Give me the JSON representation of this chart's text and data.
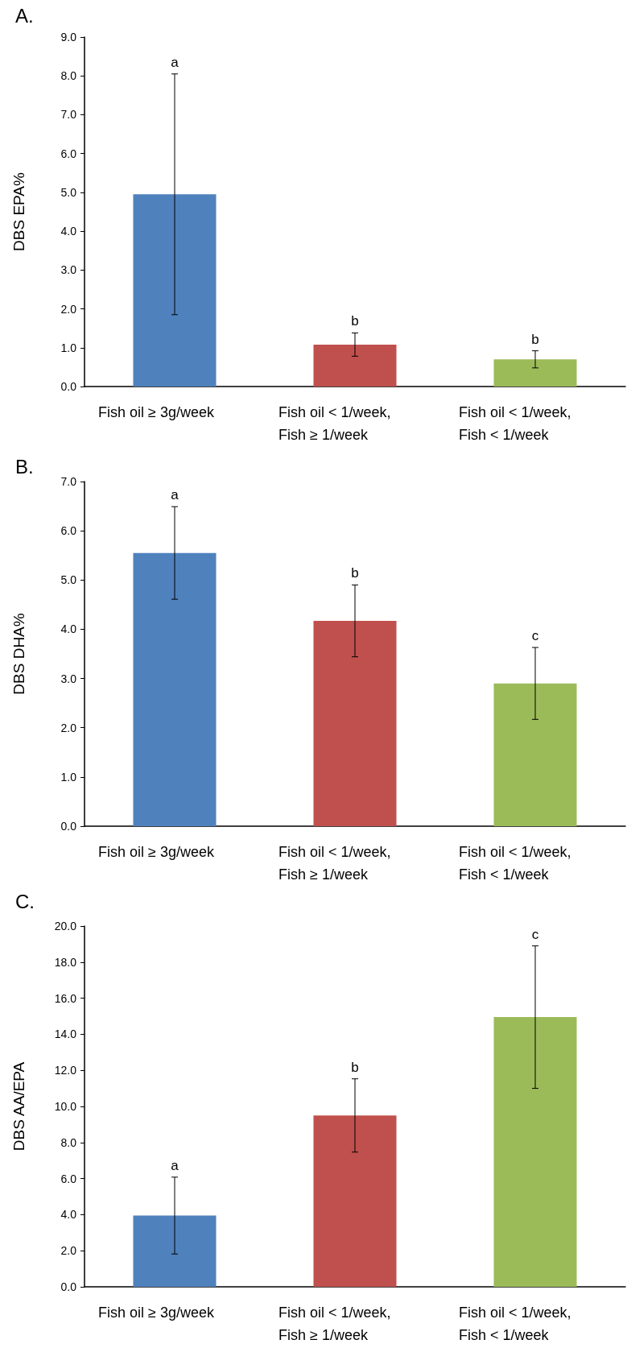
{
  "chart_data": [
    {
      "type": "bar",
      "title": "A.",
      "ylabel": "DBS EPA%",
      "categories": [
        "Fish oil ≥ 3g/week",
        "Fish oil < 1/week,\nFish ≥ 1/week",
        "Fish oil < 1/week,\nFish < 1/week"
      ],
      "values": [
        4.95,
        1.08,
        0.7
      ],
      "colors": [
        "#4f81bd",
        "#c0504d",
        "#9bbb59"
      ],
      "errors": [
        3.1,
        0.3,
        0.22
      ],
      "ylim": [
        0,
        9
      ],
      "yticks": [
        {
          "value": 0,
          "label": "0.0"
        },
        {
          "value": 1,
          "label": "1.0"
        },
        {
          "value": 2,
          "label": "2.0"
        },
        {
          "value": 3,
          "label": "3.0"
        },
        {
          "value": 4,
          "label": "4.0"
        },
        {
          "value": 5,
          "label": "5.0"
        },
        {
          "value": 6,
          "label": "6.0"
        },
        {
          "value": 7,
          "label": "7.0"
        },
        {
          "value": 8,
          "label": "8.0"
        },
        {
          "value": 9,
          "label": "9.0"
        }
      ],
      "grid": false,
      "annotations": [
        "a",
        "b",
        "b"
      ]
    },
    {
      "type": "bar",
      "title": "B.",
      "ylabel": "DBS DHA%",
      "categories": [
        "Fish oil ≥ 3g/week",
        "Fish oil < 1/week,\nFish ≥ 1/week",
        "Fish oil < 1/week,\nFish < 1/week"
      ],
      "values": [
        5.55,
        4.17,
        2.9
      ],
      "colors": [
        "#4f81bd",
        "#c0504d",
        "#9bbb59"
      ],
      "errors": [
        0.94,
        0.73,
        0.73
      ],
      "ylim": [
        0,
        7
      ],
      "yticks": [
        {
          "value": 0,
          "label": "0.0"
        },
        {
          "value": 1,
          "label": "1.0"
        },
        {
          "value": 2,
          "label": "2.0"
        },
        {
          "value": 3,
          "label": "3.0"
        },
        {
          "value": 4,
          "label": "4.0"
        },
        {
          "value": 5,
          "label": "5.0"
        },
        {
          "value": 6,
          "label": "6.0"
        },
        {
          "value": 7,
          "label": "7.0"
        }
      ],
      "grid": false,
      "annotations": [
        "a",
        "b",
        "c"
      ]
    },
    {
      "type": "bar",
      "title": "C.",
      "ylabel": "DBS AA/EPA",
      "categories": [
        "Fish oil ≥ 3g/week",
        "Fish oil < 1/week,\nFish ≥ 1/week",
        "Fish oil < 1/week,\nFish < 1/week"
      ],
      "values": [
        3.95,
        9.5,
        14.95
      ],
      "colors": [
        "#4f81bd",
        "#c0504d",
        "#9bbb59"
      ],
      "errors": [
        2.13,
        2.03,
        3.95
      ],
      "ylim": [
        0,
        20
      ],
      "yticks": [
        {
          "value": 0,
          "label": "0.0"
        },
        {
          "value": 2,
          "label": "2.0"
        },
        {
          "value": 4,
          "label": "4.0"
        },
        {
          "value": 6,
          "label": "6.0"
        },
        {
          "value": 8,
          "label": "8.0"
        },
        {
          "value": 10,
          "label": "10.0"
        },
        {
          "value": 12,
          "label": "12.0"
        },
        {
          "value": 14,
          "label": "14.0"
        },
        {
          "value": 16,
          "label": "16.0"
        },
        {
          "value": 18,
          "label": "18.0"
        },
        {
          "value": 20,
          "label": "20.0"
        }
      ],
      "grid": false,
      "annotations": [
        "a",
        "b",
        "c"
      ]
    }
  ]
}
